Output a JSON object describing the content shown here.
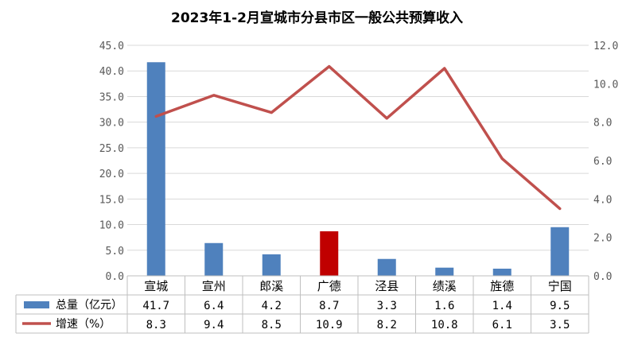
{
  "chart_data": {
    "type": "bar",
    "title": "2023年1-2月宣城市分县市区一般公共预算收入",
    "categories": [
      "宣城",
      "宣州",
      "郎溪",
      "广德",
      "泾县",
      "绩溪",
      "旌德",
      "宁国"
    ],
    "series": [
      {
        "name": "总量（亿元）",
        "type": "bar",
        "axis": "left",
        "color": "#4F81BD",
        "highlight": {
          "category": "广德",
          "color": "#C00000"
        },
        "values": [
          41.7,
          6.4,
          4.2,
          8.7,
          3.3,
          1.6,
          1.4,
          9.5
        ],
        "labels": [
          "41.7",
          "6.4",
          "4.2",
          "8.7",
          "3.3",
          "1.6",
          "1.4",
          "9.5"
        ]
      },
      {
        "name": "增速（%）",
        "type": "line",
        "axis": "right",
        "color": "#C0504D",
        "values": [
          8.3,
          9.4,
          8.5,
          10.9,
          8.2,
          10.8,
          6.1,
          3.5
        ],
        "labels": [
          "8.3",
          "9.4",
          "8.5",
          "10.9",
          "8.2",
          "10.8",
          "6.1",
          "3.5"
        ]
      }
    ],
    "y_left": {
      "min": 0,
      "max": 45,
      "step": 5,
      "ticks": [
        "0.0",
        "5.0",
        "10.0",
        "15.0",
        "20.0",
        "25.0",
        "30.0",
        "35.0",
        "40.0",
        "45.0"
      ]
    },
    "y_right": {
      "min": 0,
      "max": 12,
      "step": 2,
      "ticks": [
        "0.0",
        "2.0",
        "4.0",
        "6.0",
        "8.0",
        "10.0",
        "12.0"
      ]
    },
    "grid": true,
    "legend": "data-table"
  }
}
